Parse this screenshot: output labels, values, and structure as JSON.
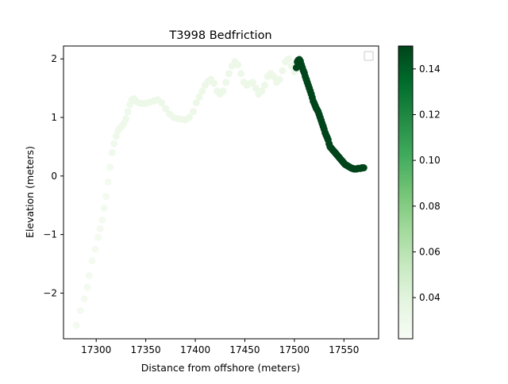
{
  "chart_data": {
    "type": "scatter",
    "title": "T3998 Bedfriction",
    "xlabel": "Distance from offshore (meters)",
    "ylabel": "Elevation (meters)",
    "xlim": [
      17267,
      17585
    ],
    "ylim": [
      -2.78,
      2.22
    ],
    "xticks": [
      17300,
      17350,
      17400,
      17450,
      17500,
      17550
    ],
    "yticks": [
      -2,
      -1,
      0,
      1,
      2
    ],
    "xtick_labels": [
      "17300",
      "17350",
      "17400",
      "17450",
      "17500",
      "17550"
    ],
    "ytick_labels": [
      "−2",
      "−1",
      "0",
      "1",
      "2"
    ],
    "colormap": "Greens",
    "colorbar": {
      "range": [
        0.022,
        0.15
      ],
      "ticks": [
        0.04,
        0.06,
        0.08,
        0.1,
        0.12,
        0.14
      ],
      "tick_labels": [
        "0.04",
        "0.06",
        "0.08",
        "0.10",
        "0.12",
        "0.14"
      ]
    },
    "legend": {
      "placement": "top-right",
      "entries": []
    },
    "grid": false,
    "series": [
      {
        "x": [
          17280,
          17284,
          17288,
          17291,
          17293,
          17296,
          17299,
          17302,
          17304,
          17306,
          17308,
          17310,
          17312,
          17314,
          17316,
          17318,
          17320,
          17322,
          17324,
          17326,
          17328,
          17330,
          17332,
          17334,
          17336,
          17338,
          17340,
          17343,
          17346,
          17350,
          17354,
          17358,
          17362,
          17366,
          17370,
          17374,
          17378,
          17382,
          17386,
          17390,
          17394,
          17398,
          17401,
          17404,
          17407,
          17410,
          17413,
          17416,
          17419,
          17422,
          17425,
          17428,
          17431,
          17434,
          17437,
          17440,
          17443,
          17446,
          17449,
          17452,
          17455,
          17458,
          17461,
          17464,
          17467,
          17470,
          17473,
          17476,
          17479,
          17482,
          17485,
          17488,
          17491,
          17494,
          17497,
          17500
        ],
        "y": [
          -2.55,
          -2.3,
          -2.1,
          -1.9,
          -1.7,
          -1.45,
          -1.25,
          -1.05,
          -0.9,
          -0.75,
          -0.55,
          -0.35,
          -0.1,
          0.15,
          0.4,
          0.55,
          0.68,
          0.77,
          0.82,
          0.85,
          0.9,
          0.98,
          1.1,
          1.22,
          1.3,
          1.32,
          1.28,
          1.25,
          1.24,
          1.24,
          1.26,
          1.28,
          1.3,
          1.25,
          1.15,
          1.06,
          1.0,
          0.98,
          0.97,
          0.96,
          1.0,
          1.1,
          1.25,
          1.35,
          1.45,
          1.55,
          1.62,
          1.65,
          1.58,
          1.45,
          1.4,
          1.45,
          1.6,
          1.75,
          1.88,
          1.95,
          1.9,
          1.75,
          1.6,
          1.55,
          1.58,
          1.6,
          1.5,
          1.4,
          1.45,
          1.55,
          1.7,
          1.75,
          1.7,
          1.6,
          1.65,
          1.8,
          1.95,
          2.0,
          1.88,
          1.78
        ],
        "values": [
          0.026,
          0.026,
          0.026,
          0.026,
          0.026,
          0.026,
          0.026,
          0.026,
          0.026,
          0.026,
          0.026,
          0.026,
          0.026,
          0.027,
          0.028,
          0.029,
          0.03,
          0.03,
          0.03,
          0.03,
          0.03,
          0.03,
          0.03,
          0.03,
          0.031,
          0.031,
          0.031,
          0.031,
          0.031,
          0.031,
          0.031,
          0.031,
          0.031,
          0.031,
          0.031,
          0.031,
          0.031,
          0.031,
          0.031,
          0.031,
          0.031,
          0.031,
          0.031,
          0.031,
          0.031,
          0.031,
          0.031,
          0.031,
          0.031,
          0.031,
          0.031,
          0.031,
          0.031,
          0.031,
          0.031,
          0.031,
          0.031,
          0.031,
          0.031,
          0.031,
          0.031,
          0.031,
          0.031,
          0.031,
          0.031,
          0.031,
          0.031,
          0.031,
          0.031,
          0.031,
          0.031,
          0.031,
          0.031,
          0.031,
          0.031,
          0.031
        ]
      },
      {
        "x": [
          17502,
          17503,
          17504,
          17505,
          17506,
          17507,
          17508,
          17509,
          17510,
          17511,
          17512,
          17513,
          17514,
          17515,
          17516,
          17517,
          17518,
          17519,
          17520,
          17521,
          17522,
          17523,
          17524,
          17525,
          17526,
          17527,
          17528,
          17529,
          17530,
          17531,
          17532,
          17533,
          17534,
          17535,
          17536,
          17537,
          17538,
          17539,
          17540,
          17541,
          17542,
          17543,
          17544,
          17545,
          17546,
          17547,
          17548,
          17549,
          17550,
          17551,
          17552,
          17553,
          17554,
          17555,
          17556,
          17557,
          17558,
          17559,
          17560,
          17561,
          17562,
          17563,
          17564,
          17565,
          17566,
          17567,
          17568,
          17569,
          17570
        ],
        "y": [
          1.85,
          1.95,
          1.98,
          1.99,
          1.96,
          1.9,
          1.85,
          1.8,
          1.76,
          1.7,
          1.65,
          1.6,
          1.55,
          1.5,
          1.45,
          1.4,
          1.34,
          1.28,
          1.24,
          1.2,
          1.16,
          1.13,
          1.1,
          1.05,
          1.0,
          0.95,
          0.9,
          0.85,
          0.8,
          0.74,
          0.7,
          0.66,
          0.62,
          0.55,
          0.5,
          0.48,
          0.46,
          0.44,
          0.42,
          0.4,
          0.38,
          0.36,
          0.34,
          0.32,
          0.3,
          0.28,
          0.26,
          0.24,
          0.22,
          0.2,
          0.19,
          0.18,
          0.17,
          0.16,
          0.15,
          0.14,
          0.13,
          0.13,
          0.12,
          0.12,
          0.12,
          0.12,
          0.13,
          0.13,
          0.13,
          0.13,
          0.14,
          0.14,
          0.14
        ],
        "values": [
          0.15,
          0.15,
          0.15,
          0.15,
          0.15,
          0.15,
          0.15,
          0.15,
          0.15,
          0.15,
          0.15,
          0.15,
          0.15,
          0.15,
          0.15,
          0.15,
          0.15,
          0.15,
          0.15,
          0.15,
          0.15,
          0.15,
          0.15,
          0.15,
          0.15,
          0.15,
          0.15,
          0.15,
          0.15,
          0.15,
          0.15,
          0.15,
          0.15,
          0.15,
          0.15,
          0.15,
          0.15,
          0.15,
          0.15,
          0.15,
          0.15,
          0.15,
          0.15,
          0.15,
          0.15,
          0.15,
          0.15,
          0.15,
          0.15,
          0.15,
          0.15,
          0.15,
          0.15,
          0.15,
          0.15,
          0.15,
          0.15,
          0.15,
          0.15,
          0.15,
          0.15,
          0.15,
          0.15,
          0.15,
          0.15,
          0.15,
          0.15,
          0.15,
          0.15
        ]
      }
    ]
  }
}
